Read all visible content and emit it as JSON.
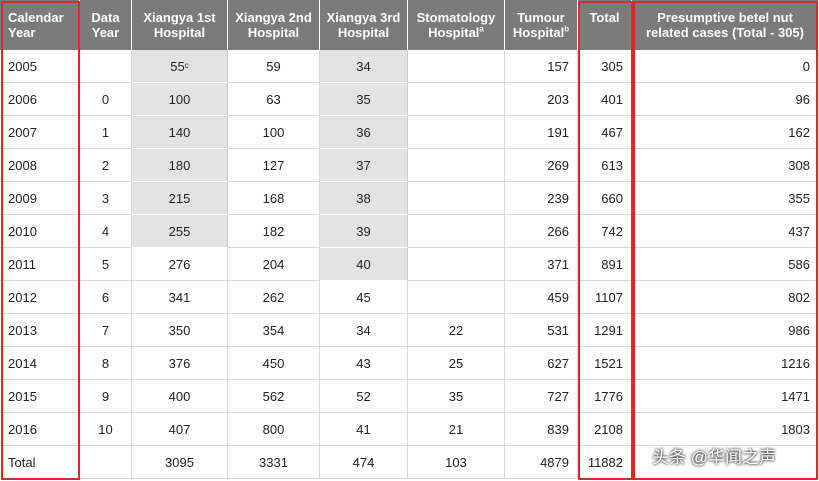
{
  "table": {
    "header": [
      {
        "text": "Calendar Year"
      },
      {
        "text": "Data Year"
      },
      {
        "text": "Xiangya 1st Hospital"
      },
      {
        "text": "Xiangya 2nd Hospital"
      },
      {
        "text": "Xiangya 3rd Hospital"
      },
      {
        "text": "Stomatology Hospital",
        "sup": "a"
      },
      {
        "text": "Tumour Hospital",
        "sup": "b"
      },
      {
        "text": "Total"
      },
      {
        "text": "Presumptive betel nut related cases (Total - 305)"
      }
    ],
    "rows": [
      [
        2005,
        null,
        {
          "value": 55,
          "sup": "c"
        },
        59,
        34,
        null,
        157,
        305,
        0
      ],
      [
        2006,
        0,
        100,
        63,
        35,
        null,
        203,
        401,
        96
      ],
      [
        2007,
        1,
        140,
        100,
        36,
        null,
        191,
        467,
        162
      ],
      [
        2008,
        2,
        180,
        127,
        37,
        null,
        269,
        613,
        308
      ],
      [
        2009,
        3,
        215,
        168,
        38,
        null,
        239,
        660,
        355
      ],
      [
        2010,
        4,
        255,
        182,
        39,
        null,
        266,
        742,
        437
      ],
      [
        2011,
        5,
        276,
        204,
        40,
        null,
        371,
        891,
        586
      ],
      [
        2012,
        6,
        341,
        262,
        45,
        null,
        459,
        1107,
        802
      ],
      [
        2013,
        7,
        350,
        354,
        34,
        22,
        531,
        1291,
        986
      ],
      [
        2014,
        8,
        376,
        450,
        43,
        25,
        627,
        1521,
        1216
      ],
      [
        2015,
        9,
        400,
        562,
        52,
        35,
        727,
        1776,
        1471
      ],
      [
        2016,
        10,
        407,
        800,
        41,
        21,
        839,
        2108,
        1803
      ],
      [
        "Total",
        null,
        3095,
        3331,
        474,
        103,
        4879,
        11882,
        null
      ]
    ]
  },
  "watermark": "头条 @华闻之声"
}
